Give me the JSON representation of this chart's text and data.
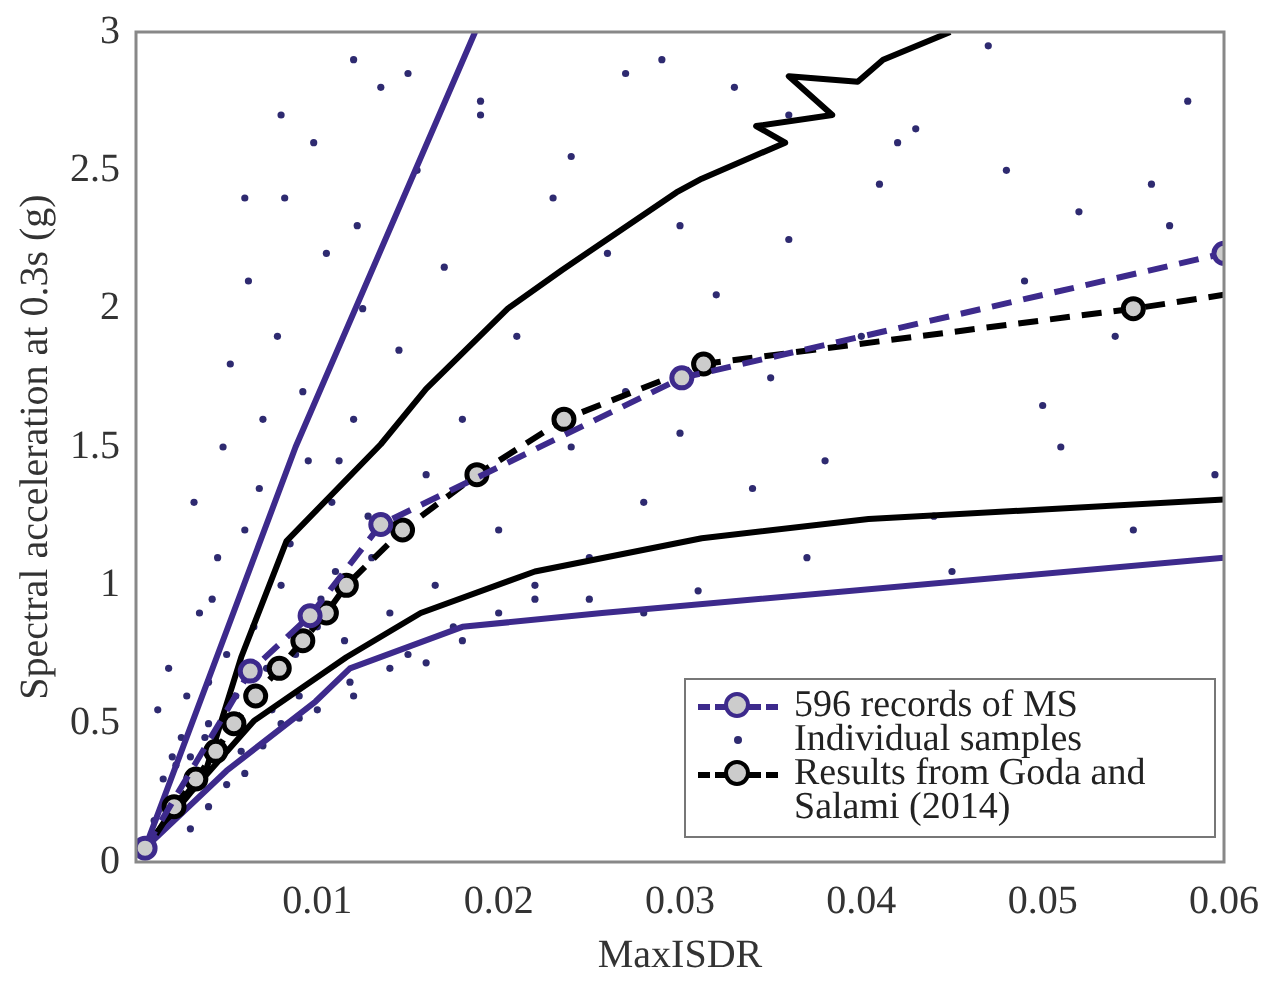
{
  "chart_data": {
    "type": "line",
    "xlabel": "MaxISDR",
    "ylabel": "Spectral acceleration at 0.3s (g)",
    "xlim": [
      0,
      0.06
    ],
    "ylim": [
      0,
      3
    ],
    "xticks": [
      0.01,
      0.02,
      0.03,
      0.04,
      0.05,
      0.06
    ],
    "yticks": [
      0,
      0.5,
      1,
      1.5,
      2,
      2.5,
      3
    ],
    "grid": false,
    "legend": "bottom right",
    "series": [
      {
        "name": "596 records of MS",
        "color": "#3d2a8c",
        "line_style": "dashed",
        "marker": "circle",
        "x": [
          0.0005,
          0.0063,
          0.0096,
          0.0135,
          0.0301,
          0.06
        ],
        "values": [
          0.05,
          0.69,
          0.89,
          1.22,
          1.75,
          2.2
        ]
      },
      {
        "name": "Individual samples",
        "type": "scatter",
        "color": "#2e2a70",
        "marker": "circle",
        "x": [
          0.001,
          0.0015,
          0.002,
          0.0025,
          0.003,
          0.0012,
          0.0018,
          0.0022,
          0.0028,
          0.0035,
          0.004,
          0.0045,
          0.005,
          0.0032,
          0.0038,
          0.0042,
          0.0048,
          0.0055,
          0.006,
          0.0065,
          0.007,
          0.0075,
          0.008,
          0.0052,
          0.0058,
          0.0062,
          0.0068,
          0.0072,
          0.0078,
          0.0085,
          0.009,
          0.0095,
          0.01,
          0.0105,
          0.011,
          0.0082,
          0.0088,
          0.0092,
          0.0098,
          0.0102,
          0.0108,
          0.0115,
          0.012,
          0.0125,
          0.013,
          0.0135,
          0.014,
          0.0112,
          0.0118,
          0.0122,
          0.0128,
          0.0145,
          0.015,
          0.0155,
          0.016,
          0.0165,
          0.017,
          0.0175,
          0.018,
          0.019,
          0.02,
          0.021,
          0.022,
          0.023,
          0.024,
          0.025,
          0.026,
          0.027,
          0.028,
          0.029,
          0.003,
          0.004,
          0.005,
          0.006,
          0.007,
          0.008,
          0.009,
          0.01,
          0.012,
          0.014,
          0.016,
          0.018,
          0.02,
          0.022,
          0.025,
          0.028,
          0.03,
          0.032,
          0.034,
          0.036,
          0.038,
          0.04,
          0.042,
          0.045,
          0.048,
          0.05,
          0.052,
          0.055,
          0.058,
          0.031,
          0.033,
          0.035,
          0.037,
          0.041,
          0.044,
          0.047,
          0.051,
          0.054,
          0.057,
          0.0595,
          0.004,
          0.006,
          0.008,
          0.012,
          0.015,
          0.019,
          0.024,
          0.027,
          0.03,
          0.036,
          0.043,
          0.049,
          0.056
        ],
        "values": [
          0.15,
          0.3,
          0.38,
          0.45,
          0.38,
          0.55,
          0.7,
          0.35,
          0.6,
          0.9,
          0.5,
          1.1,
          0.75,
          1.3,
          0.45,
          0.95,
          1.5,
          0.6,
          1.2,
          0.85,
          1.6,
          0.55,
          1.0,
          1.8,
          0.4,
          2.1,
          1.35,
          0.7,
          1.9,
          1.15,
          0.6,
          1.45,
          0.85,
          2.2,
          1.05,
          2.4,
          0.75,
          1.7,
          2.6,
          0.95,
          1.3,
          0.8,
          1.6,
          2.0,
          1.1,
          2.8,
          0.9,
          1.45,
          0.65,
          2.3,
          1.25,
          1.85,
          0.75,
          2.5,
          1.4,
          1.0,
          2.15,
          0.85,
          1.6,
          2.7,
          1.2,
          1.9,
          0.95,
          2.4,
          1.5,
          1.1,
          2.2,
          1.7,
          0.9,
          2.9,
          0.12,
          0.2,
          0.28,
          0.32,
          0.42,
          0.5,
          0.52,
          0.55,
          0.6,
          0.7,
          0.72,
          0.8,
          0.9,
          1.0,
          0.95,
          1.3,
          1.55,
          2.05,
          1.35,
          2.25,
          1.45,
          1.9,
          2.6,
          1.05,
          2.5,
          1.65,
          2.35,
          1.2,
          2.75,
          0.98,
          2.8,
          1.75,
          1.1,
          2.45,
          1.25,
          2.95,
          1.5,
          1.9,
          2.3,
          1.4,
          0.65,
          2.4,
          2.7,
          2.9,
          2.85,
          2.75,
          2.55,
          2.85,
          2.3,
          2.7,
          2.65,
          2.1,
          2.45
        ]
      },
      {
        "name": "Results from Goda and Salami (2014)",
        "color": "#000000",
        "line_style": "dashed",
        "marker": "circle",
        "x": [
          0.0011,
          0.0021,
          0.0033,
          0.0044,
          0.0054,
          0.0066,
          0.0079,
          0.0092,
          0.0105,
          0.0116,
          0.0147,
          0.0188,
          0.0236,
          0.0313,
          0.055,
          0.06
        ],
        "values": [
          0.1,
          0.2,
          0.3,
          0.4,
          0.5,
          0.6,
          0.7,
          0.8,
          0.9,
          1.0,
          1.2,
          1.4,
          1.6,
          1.8,
          2.0,
          2.05
        ]
      },
      {
        "color": "#3d2a8c",
        "line_style": "solid",
        "marker": "none",
        "x": [
          0.0005,
          0.0088,
          0.0187
        ],
        "values": [
          0.05,
          1.5,
          3.0
        ]
      },
      {
        "color": "#3d2a8c",
        "line_style": "solid",
        "marker": "none",
        "x": [
          0.0005,
          0.005,
          0.0099,
          0.0118,
          0.018,
          0.0257,
          0.06
        ],
        "values": [
          0.05,
          0.33,
          0.58,
          0.7,
          0.85,
          0.9,
          1.1
        ]
      },
      {
        "color": "#000000",
        "line_style": "solid",
        "marker": "none",
        "x": [
          0.0005,
          0.003,
          0.0065,
          0.0116,
          0.0157,
          0.022,
          0.0312,
          0.0404,
          0.06
        ],
        "values": [
          0.05,
          0.25,
          0.51,
          0.74,
          0.9,
          1.05,
          1.17,
          1.24,
          1.31
        ]
      },
      {
        "color": "#000000",
        "line_style": "solid",
        "marker": "none",
        "x": [
          0.0005,
          0.0039,
          0.0058,
          0.0083,
          0.0135,
          0.016,
          0.0205,
          0.0235,
          0.0298,
          0.0312,
          0.0358,
          0.0342,
          0.0384,
          0.036,
          0.0398,
          0.0412,
          0.0449
        ],
        "values": [
          0.05,
          0.34,
          0.74,
          1.16,
          1.51,
          1.71,
          2.0,
          2.14,
          2.42,
          2.47,
          2.6,
          2.66,
          2.7,
          2.84,
          2.82,
          2.9,
          3.0
        ]
      }
    ]
  }
}
